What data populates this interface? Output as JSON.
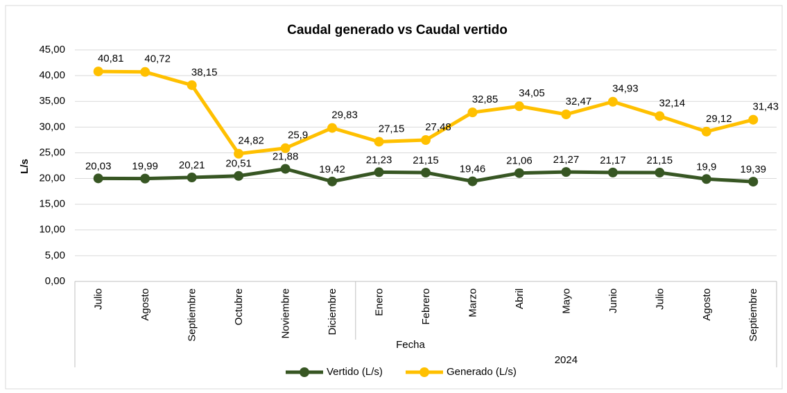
{
  "chart_data": {
    "type": "line",
    "title": "Caudal generado vs Caudal vertido",
    "y_label": "L/s",
    "x_label": "Fecha",
    "categories": [
      "Julio",
      "Agosto",
      "Septiembre",
      "Octubre",
      "Noviembre",
      "Diciembre",
      "Enero",
      "Febrero",
      "Marzo",
      "Abril",
      "Mayo",
      "Junio",
      "Julio",
      "Agosto",
      "Septiembre"
    ],
    "groups": [
      {
        "label": null,
        "count": 6
      },
      {
        "label": "2024",
        "count": 9
      }
    ],
    "series": [
      {
        "name": "Vertido (L/s)",
        "color": "#375623",
        "values": [
          20.03,
          19.99,
          20.21,
          20.51,
          21.88,
          19.42,
          21.23,
          21.15,
          19.46,
          21.06,
          21.27,
          21.17,
          21.15,
          19.9,
          19.39
        ],
        "value_labels": [
          "20,03",
          "19,99",
          "20,21",
          "20,51",
          "21,88",
          "19,42",
          "21,23",
          "21,15",
          "19,46",
          "21,06",
          "21,27",
          "21,17",
          "21,15",
          "19,9",
          "19,39"
        ]
      },
      {
        "name": "Generado (L/s)",
        "color": "#ffc000",
        "values": [
          40.81,
          40.72,
          38.15,
          24.82,
          25.9,
          29.83,
          27.15,
          27.48,
          32.85,
          34.05,
          32.47,
          34.93,
          32.14,
          29.12,
          31.43
        ],
        "value_labels": [
          "40,81",
          "40,72",
          "38,15",
          "24,82",
          "25,9",
          "29,83",
          "27,15",
          "27,48",
          "32,85",
          "34,05",
          "32,47",
          "34,93",
          "32,14",
          "29,12",
          "31,43"
        ]
      }
    ],
    "ylim": [
      0,
      45
    ],
    "yticks": [
      {
        "value": 0,
        "label": "0,00"
      },
      {
        "value": 5,
        "label": "5,00"
      },
      {
        "value": 10,
        "label": "10,00"
      },
      {
        "value": 15,
        "label": "15,00"
      },
      {
        "value": 20,
        "label": "20,00"
      },
      {
        "value": 25,
        "label": "25,00"
      },
      {
        "value": 30,
        "label": "30,00"
      },
      {
        "value": 35,
        "label": "35,00"
      },
      {
        "value": 40,
        "label": "40,00"
      },
      {
        "value": 45,
        "label": "45,00"
      }
    ],
    "grid": true,
    "legend": "bottom"
  }
}
